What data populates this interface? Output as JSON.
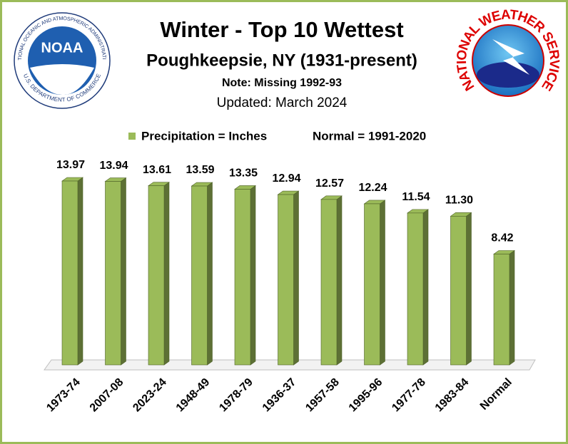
{
  "chart_data": {
    "type": "bar3d",
    "title": "Winter - Top 10 Wettest",
    "subtitle": "Poughkeepsie, NY (1931-present)",
    "note": "Note: Missing 1992-93",
    "updated": "Updated:  March 2024",
    "legend_note": "Normal = 1991-2020",
    "categories": [
      "1973-74",
      "2007-08",
      "2023-24",
      "1948-49",
      "1978-79",
      "1936-37",
      "1957-58",
      "1995-96",
      "1977-78",
      "1983-84",
      "Normal"
    ],
    "series": [
      {
        "name": "Precipitation = Inches",
        "color": "#9bbb59",
        "values": [
          13.97,
          13.94,
          13.61,
          13.59,
          13.35,
          12.94,
          12.57,
          12.24,
          11.54,
          11.3,
          8.42
        ],
        "value_labels": [
          "13.97",
          "13.94",
          "13.61",
          "13.59",
          "13.35",
          "12.94",
          "12.57",
          "12.24",
          "11.54",
          "11.30",
          "8.42"
        ]
      }
    ]
  },
  "logos": {
    "noaa": {
      "name": "NOAA",
      "ring_top": "NATIONAL OCEANIC AND ATMOSPHERIC ADMINISTRATION",
      "ring_bottom": "U.S. DEPARTMENT OF COMMERCE"
    },
    "nws": {
      "ring": "NATIONAL WEATHER SERVICE"
    }
  }
}
